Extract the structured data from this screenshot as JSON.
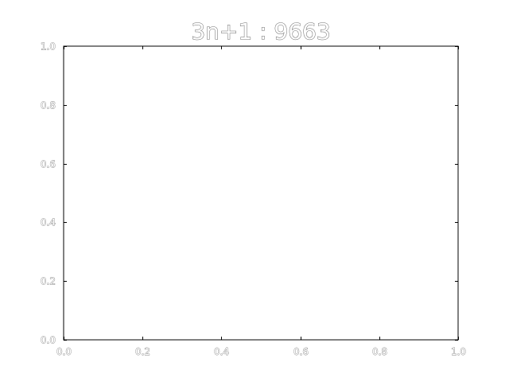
{
  "chart_data": {
    "type": "line",
    "title": "3n+1 : 9663",
    "xlabel": "",
    "ylabel": "",
    "xlim": [
      0.0,
      1.0
    ],
    "ylim": [
      0.0,
      1.0
    ],
    "x_ticks": [
      "0.0",
      "0.2",
      "0.4",
      "0.6",
      "0.8",
      "1.0"
    ],
    "y_ticks": [
      "0.0",
      "0.2",
      "0.4",
      "0.6",
      "0.8",
      "1.0"
    ],
    "grid": false,
    "legend": "none",
    "series": []
  }
}
